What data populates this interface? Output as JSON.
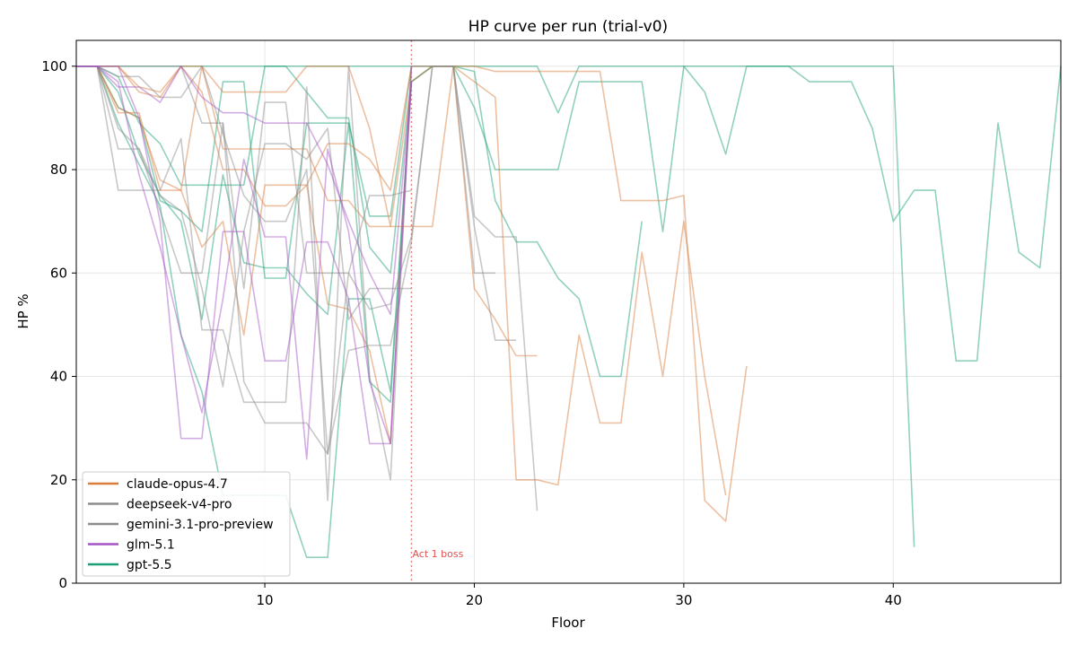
{
  "chart_data": {
    "type": "line",
    "title": "HP curve per run (trial-v0)",
    "xlabel": "Floor",
    "ylabel": "HP %",
    "xlim": [
      1,
      48
    ],
    "ylim": [
      0,
      105
    ],
    "xticks": [
      10,
      20,
      30,
      40
    ],
    "yticks": [
      0,
      20,
      40,
      60,
      80,
      100
    ],
    "grid": true,
    "legend_position": "lower-left",
    "legend": [
      {
        "name": "claude-opus-4.7",
        "color": "#d97c3c"
      },
      {
        "name": "deepseek-v4-pro",
        "color": "#8c8c8c"
      },
      {
        "name": "gemini-3.1-pro-preview",
        "color": "#8c8c8c"
      },
      {
        "name": "glm-5.1",
        "color": "#a355c4"
      },
      {
        "name": "gpt-5.5",
        "color": "#1a9e77"
      }
    ],
    "annotations": [
      {
        "type": "vline",
        "x": 17,
        "label": "Act 1 boss",
        "color": "#e05050"
      }
    ],
    "series": [
      {
        "model": "gpt-5.5",
        "color": "#1a9e77",
        "x": [
          1,
          2,
          3,
          4,
          5,
          6,
          7,
          8,
          9,
          10,
          11,
          12,
          13,
          14,
          15,
          16,
          17,
          18,
          19,
          20,
          21,
          22,
          23,
          24,
          25,
          26,
          27,
          28,
          29,
          30,
          31,
          32,
          33,
          34,
          35,
          36,
          37,
          38,
          39,
          40,
          41,
          42,
          43,
          44,
          45,
          46,
          47,
          48
        ],
        "y": [
          100,
          100,
          100,
          100,
          100,
          100,
          100,
          100,
          100,
          100,
          100,
          100,
          100,
          100,
          100,
          100,
          100,
          100,
          100,
          100,
          100,
          100,
          100,
          91,
          100,
          100,
          100,
          100,
          100,
          100,
          100,
          100,
          100,
          100,
          100,
          97,
          97,
          97,
          88,
          70,
          76,
          76,
          43,
          43,
          89,
          64,
          61,
          100
        ]
      },
      {
        "model": "gpt-5.5",
        "color": "#1a9e77",
        "x": [
          1,
          2,
          3,
          4,
          5,
          6,
          7,
          8,
          9,
          10,
          11,
          12,
          13,
          14,
          15,
          16,
          17,
          18,
          19,
          20,
          21,
          22,
          23,
          24,
          25,
          26,
          27,
          28,
          29,
          30,
          31,
          32,
          33,
          34,
          35,
          36,
          37,
          38,
          39,
          40,
          41
        ],
        "y": [
          100,
          100,
          98,
          89,
          85,
          77,
          77,
          77,
          77,
          100,
          100,
          95,
          90,
          90,
          65,
          60,
          97,
          100,
          100,
          92,
          80,
          80,
          80,
          80,
          97,
          97,
          97,
          97,
          68,
          100,
          95,
          83,
          100,
          100,
          100,
          100,
          100,
          100,
          100,
          100,
          7
        ]
      },
      {
        "model": "gpt-5.5",
        "color": "#1a9e77",
        "x": [
          1,
          2,
          3,
          4,
          5,
          6,
          7,
          8,
          9,
          10,
          11,
          12,
          13,
          14,
          15,
          16,
          17,
          18,
          19,
          20,
          21,
          22,
          23,
          24,
          25,
          26,
          27,
          28
        ],
        "y": [
          100,
          100,
          95,
          83,
          75,
          70,
          51,
          79,
          62,
          61,
          61,
          56,
          52,
          89,
          39,
          35,
          97,
          100,
          100,
          99,
          74,
          66,
          66,
          59,
          55,
          40,
          40,
          70
        ]
      },
      {
        "model": "gpt-5.5",
        "color": "#1a9e77",
        "x": [
          1,
          2,
          3,
          4,
          5,
          6,
          7,
          8,
          9,
          10,
          11,
          12,
          13,
          14,
          15,
          16,
          17
        ],
        "y": [
          100,
          100,
          89,
          81,
          73,
          48,
          37,
          17,
          17,
          17,
          17,
          5,
          5,
          55,
          55,
          37,
          97
        ]
      },
      {
        "model": "gpt-5.5",
        "color": "#1a9e77",
        "x": [
          1,
          2,
          3,
          4,
          5,
          6,
          7,
          8,
          9,
          10,
          11,
          12,
          13,
          14,
          15,
          16,
          17
        ],
        "y": [
          100,
          100,
          92,
          90,
          74,
          72,
          68,
          97,
          97,
          59,
          59,
          89,
          89,
          89,
          71,
          71,
          100
        ]
      },
      {
        "model": "claude-opus-4.7",
        "color": "#d97c3c",
        "x": [
          1,
          2,
          3,
          4,
          5,
          6,
          7,
          8,
          9,
          10,
          11,
          12,
          13,
          14,
          15,
          16,
          17,
          18,
          19,
          20,
          21,
          22,
          23,
          24,
          25,
          26,
          27,
          28,
          29,
          30,
          31,
          32,
          33
        ],
        "y": [
          100,
          100,
          100,
          96,
          95,
          100,
          100,
          95,
          95,
          95,
          95,
          100,
          100,
          100,
          88,
          69,
          97,
          100,
          100,
          100,
          99,
          99,
          99,
          99,
          99,
          99,
          74,
          74,
          74,
          75,
          16,
          12,
          42
        ]
      },
      {
        "model": "claude-opus-4.7",
        "color": "#d97c3c",
        "x": [
          1,
          2,
          3,
          4,
          5,
          6,
          7,
          8,
          9,
          10,
          11,
          12,
          13,
          14,
          15,
          16,
          17,
          18,
          19,
          20,
          21,
          22,
          23,
          24,
          25,
          26,
          27,
          28,
          29,
          30,
          31,
          32
        ],
        "y": [
          100,
          100,
          91,
          91,
          76,
          76,
          100,
          84,
          84,
          84,
          84,
          84,
          74,
          74,
          69,
          69,
          69,
          69,
          100,
          97,
          94,
          20,
          20,
          19,
          48,
          31,
          31,
          64,
          40,
          70,
          40,
          17
        ]
      },
      {
        "model": "claude-opus-4.7",
        "color": "#d97c3c",
        "x": [
          1,
          2,
          3,
          4,
          5,
          6,
          7,
          8,
          9,
          10,
          11,
          12,
          13,
          14,
          15,
          16,
          17,
          18,
          19,
          20,
          21,
          22,
          23
        ],
        "y": [
          100,
          100,
          100,
          95,
          94,
          100,
          95,
          80,
          80,
          73,
          73,
          77,
          85,
          85,
          82,
          76,
          100,
          100,
          100,
          57,
          51,
          44,
          44
        ]
      },
      {
        "model": "claude-opus-4.7",
        "color": "#d97c3c",
        "x": [
          1,
          2,
          3,
          4,
          5,
          6,
          7,
          8,
          9,
          10,
          11,
          12,
          13,
          14,
          15,
          16,
          17
        ],
        "y": [
          100,
          100,
          92,
          90,
          78,
          76,
          65,
          70,
          48,
          77,
          77,
          77,
          54,
          53,
          45,
          27,
          100
        ]
      },
      {
        "model": "deepseek-v4-pro",
        "color": "#8c8c8c",
        "x": [
          1,
          2,
          3,
          4,
          5,
          6,
          7,
          8,
          9,
          10,
          11,
          12,
          13,
          14,
          15,
          16,
          17,
          18,
          19,
          20,
          21,
          22,
          23
        ],
        "y": [
          100,
          100,
          100,
          100,
          100,
          100,
          89,
          89,
          57,
          93,
          93,
          60,
          60,
          60,
          53,
          54,
          67,
          100,
          100,
          71,
          67,
          67,
          14
        ]
      },
      {
        "model": "deepseek-v4-pro",
        "color": "#8c8c8c",
        "x": [
          1,
          2,
          3,
          4,
          5,
          6,
          7,
          8,
          9,
          10,
          11,
          12,
          13,
          14,
          15,
          16,
          17,
          18,
          19,
          20,
          21,
          22
        ],
        "y": [
          100,
          100,
          98,
          98,
          94,
          94,
          100,
          87,
          75,
          70,
          70,
          80,
          25,
          45,
          46,
          46,
          66,
          100,
          100,
          69,
          47,
          47
        ]
      },
      {
        "model": "gemini-3.1-pro-preview",
        "color": "#8c8c8c",
        "x": [
          1,
          2,
          3,
          4,
          5,
          6,
          7,
          8,
          9,
          10,
          11,
          12,
          13,
          14,
          15,
          16,
          17,
          18,
          19,
          20,
          21
        ],
        "y": [
          100,
          100,
          76,
          76,
          76,
          86,
          49,
          49,
          35,
          35,
          35,
          96,
          16,
          100,
          40,
          20,
          100,
          100,
          100,
          60,
          60
        ]
      },
      {
        "model": "gemini-3.1-pro-preview",
        "color": "#8c8c8c",
        "x": [
          1,
          2,
          3,
          4,
          5,
          6,
          7,
          8,
          9,
          10,
          11,
          12,
          13,
          14,
          15,
          16,
          17
        ],
        "y": [
          100,
          100,
          84,
          84,
          75,
          72,
          57,
          38,
          68,
          85,
          85,
          82,
          88,
          51,
          57,
          57,
          57
        ]
      },
      {
        "model": "gemini-3.1-pro-preview",
        "color": "#8c8c8c",
        "x": [
          1,
          2,
          3,
          4,
          5,
          6,
          7,
          8,
          9,
          10,
          11,
          12,
          13,
          14,
          15,
          16,
          17
        ],
        "y": [
          100,
          100,
          88,
          84,
          72,
          60,
          60,
          89,
          39,
          31,
          31,
          31,
          25,
          60,
          75,
          75,
          76
        ]
      },
      {
        "model": "glm-5.1",
        "color": "#a355c4",
        "x": [
          1,
          2,
          3,
          4,
          5,
          6,
          7,
          8,
          9,
          10,
          11,
          12,
          13,
          14,
          15,
          16,
          17
        ],
        "y": [
          100,
          100,
          97,
          79,
          65,
          48,
          33,
          55,
          82,
          67,
          67,
          24,
          84,
          68,
          39,
          27,
          100
        ]
      },
      {
        "model": "glm-5.1",
        "color": "#a355c4",
        "x": [
          1,
          2,
          3,
          4,
          5,
          6,
          7,
          8,
          9,
          10,
          11,
          12,
          13,
          14,
          15,
          16,
          17
        ],
        "y": [
          100,
          100,
          100,
          90,
          70,
          28,
          28,
          68,
          68,
          43,
          43,
          66,
          66,
          55,
          27,
          27,
          97
        ]
      },
      {
        "model": "glm-5.1",
        "color": "#a355c4",
        "x": [
          1,
          2,
          3,
          4,
          5,
          6,
          7,
          8,
          9,
          10,
          11,
          12,
          13,
          14,
          15,
          16,
          17
        ],
        "y": [
          100,
          100,
          96,
          96,
          93,
          100,
          94,
          91,
          91,
          89,
          89,
          89,
          81,
          70,
          60,
          52,
          97
        ]
      }
    ]
  }
}
